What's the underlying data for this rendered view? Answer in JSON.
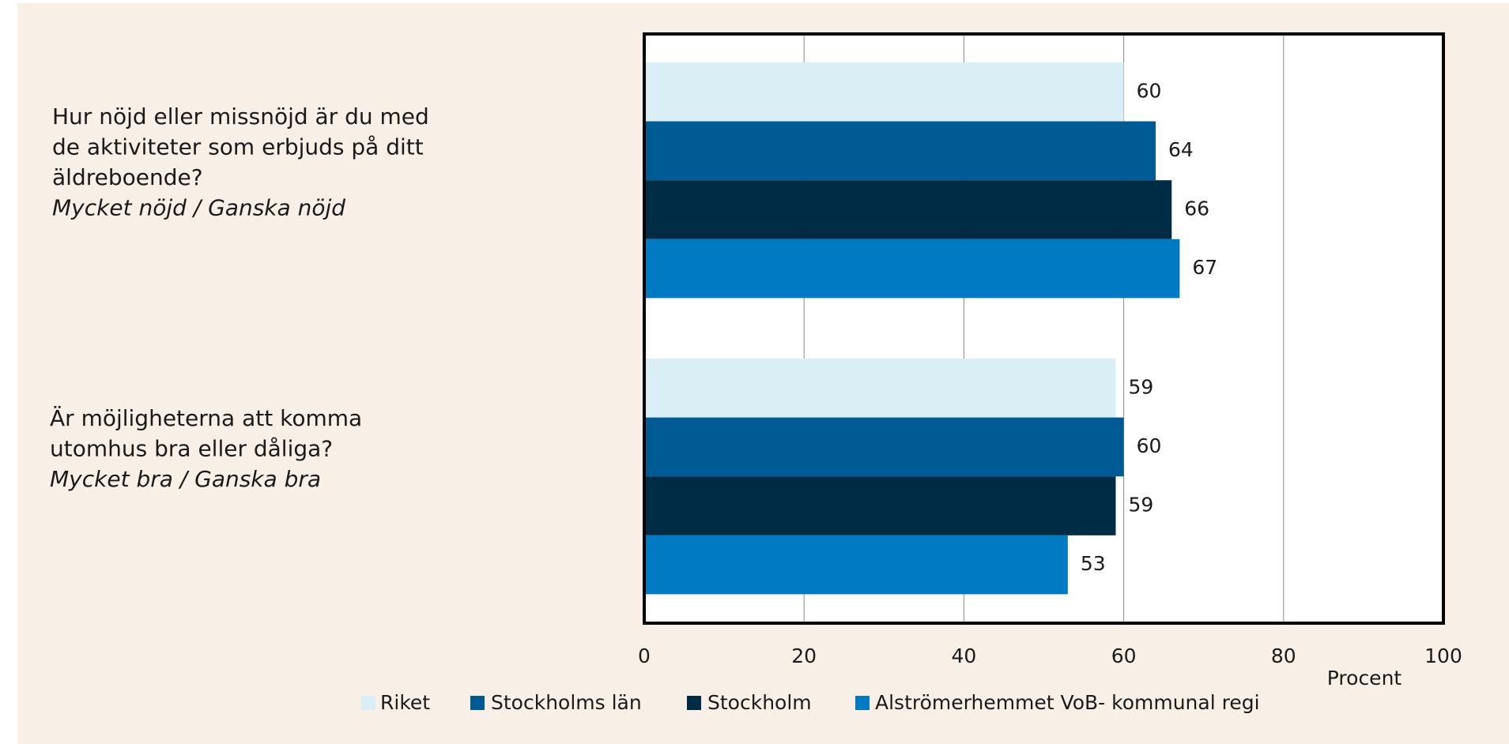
{
  "chart_data": {
    "type": "bar",
    "orientation": "horizontal",
    "categories": [
      [
        "Hur nöjd eller missnöjd är du med",
        "de aktiviteter som erbjuds på ditt",
        "äldreboende?"
      ],
      [
        "Är möjligheterna att komma",
        "utomhus bra eller dåliga?"
      ]
    ],
    "category_notes": [
      "Mycket nöjd / Ganska nöjd",
      "Mycket bra / Ganska bra"
    ],
    "series": [
      {
        "name": "Riket",
        "color": "#daeef6",
        "values": [
          60,
          59
        ]
      },
      {
        "name": "Stockholms län",
        "color": "#005a94",
        "values": [
          64,
          60
        ]
      },
      {
        "name": "Stockholm",
        "color": "#002b45",
        "values": [
          66,
          59
        ]
      },
      {
        "name": "Alströmerhemmet VoB- kommunal regi",
        "color": "#007ac2",
        "values": [
          67,
          53
        ]
      }
    ],
    "xlabel": "Procent",
    "xlim": [
      0,
      100
    ],
    "xticks": [
      0,
      20,
      40,
      60,
      80,
      100
    ],
    "grid": true,
    "legend": "bottom"
  }
}
